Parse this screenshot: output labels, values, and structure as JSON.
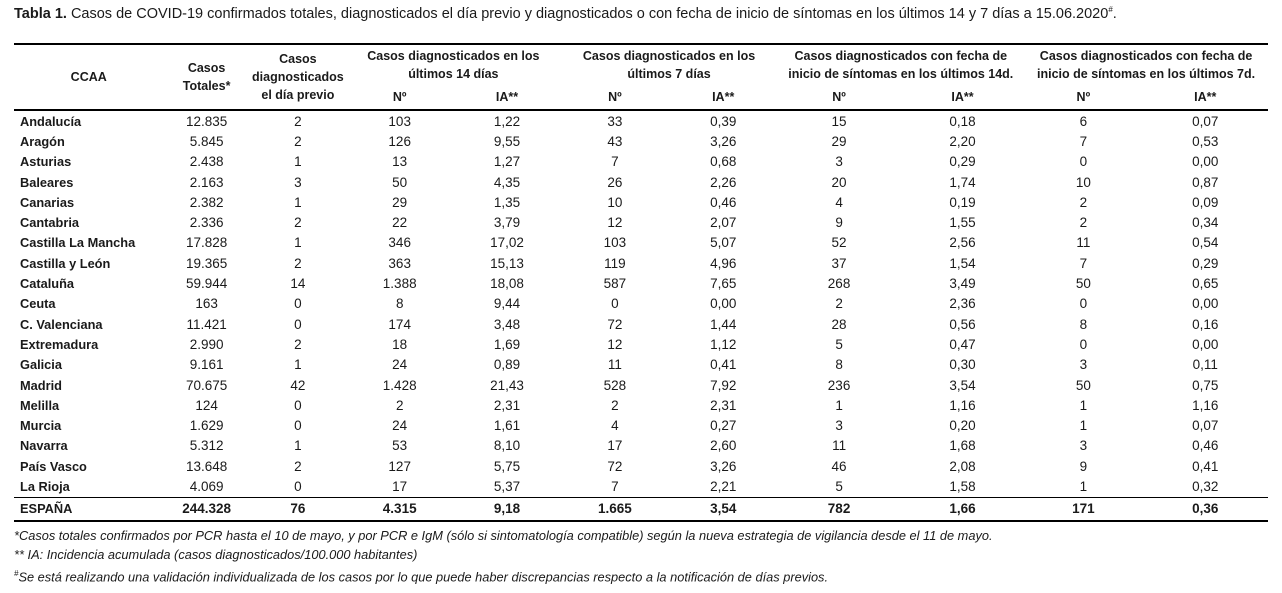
{
  "caption": {
    "label": "Tabla 1.",
    "text": "Casos de COVID-19 confirmados totales, diagnosticados el día previo y diagnosticados o con fecha de inicio de síntomas en los últimos 14 y 7 días a 15.06.2020",
    "mark": "#",
    "end": "."
  },
  "headers": {
    "ccaa": "CCAA",
    "totales": "Casos Totales*",
    "previo": "Casos diagnosticados el día previo",
    "g14": "Casos diagnosticados en los últimos 14 días",
    "g7": "Casos diagnosticados en los últimos 7 días",
    "gs14": "Casos diagnosticados con fecha de inicio de síntomas en los últimos 14d.",
    "gs7": "Casos diagnosticados con fecha de inicio de síntomas en los últimos 7d.",
    "n": "Nº",
    "ia": "IA**"
  },
  "rows": [
    [
      "Andalucía",
      "12.835",
      "2",
      "103",
      "1,22",
      "33",
      "0,39",
      "15",
      "0,18",
      "6",
      "0,07"
    ],
    [
      "Aragón",
      "5.845",
      "2",
      "126",
      "9,55",
      "43",
      "3,26",
      "29",
      "2,20",
      "7",
      "0,53"
    ],
    [
      "Asturias",
      "2.438",
      "1",
      "13",
      "1,27",
      "7",
      "0,68",
      "3",
      "0,29",
      "0",
      "0,00"
    ],
    [
      "Baleares",
      "2.163",
      "3",
      "50",
      "4,35",
      "26",
      "2,26",
      "20",
      "1,74",
      "10",
      "0,87"
    ],
    [
      "Canarias",
      "2.382",
      "1",
      "29",
      "1,35",
      "10",
      "0,46",
      "4",
      "0,19",
      "2",
      "0,09"
    ],
    [
      "Cantabria",
      "2.336",
      "2",
      "22",
      "3,79",
      "12",
      "2,07",
      "9",
      "1,55",
      "2",
      "0,34"
    ],
    [
      "Castilla La Mancha",
      "17.828",
      "1",
      "346",
      "17,02",
      "103",
      "5,07",
      "52",
      "2,56",
      "11",
      "0,54"
    ],
    [
      "Castilla y León",
      "19.365",
      "2",
      "363",
      "15,13",
      "119",
      "4,96",
      "37",
      "1,54",
      "7",
      "0,29"
    ],
    [
      "Cataluña",
      "59.944",
      "14",
      "1.388",
      "18,08",
      "587",
      "7,65",
      "268",
      "3,49",
      "50",
      "0,65"
    ],
    [
      "Ceuta",
      "163",
      "0",
      "8",
      "9,44",
      "0",
      "0,00",
      "2",
      "2,36",
      "0",
      "0,00"
    ],
    [
      "C. Valenciana",
      "11.421",
      "0",
      "174",
      "3,48",
      "72",
      "1,44",
      "28",
      "0,56",
      "8",
      "0,16"
    ],
    [
      "Extremadura",
      "2.990",
      "2",
      "18",
      "1,69",
      "12",
      "1,12",
      "5",
      "0,47",
      "0",
      "0,00"
    ],
    [
      "Galicia",
      "9.161",
      "1",
      "24",
      "0,89",
      "11",
      "0,41",
      "8",
      "0,30",
      "3",
      "0,11"
    ],
    [
      "Madrid",
      "70.675",
      "42",
      "1.428",
      "21,43",
      "528",
      "7,92",
      "236",
      "3,54",
      "50",
      "0,75"
    ],
    [
      "Melilla",
      "124",
      "0",
      "2",
      "2,31",
      "2",
      "2,31",
      "1",
      "1,16",
      "1",
      "1,16"
    ],
    [
      "Murcia",
      "1.629",
      "0",
      "24",
      "1,61",
      "4",
      "0,27",
      "3",
      "0,20",
      "1",
      "0,07"
    ],
    [
      "Navarra",
      "5.312",
      "1",
      "53",
      "8,10",
      "17",
      "2,60",
      "11",
      "1,68",
      "3",
      "0,46"
    ],
    [
      "País Vasco",
      "13.648",
      "2",
      "127",
      "5,75",
      "72",
      "3,26",
      "46",
      "2,08",
      "9",
      "0,41"
    ],
    [
      "La Rioja",
      "4.069",
      "0",
      "17",
      "5,37",
      "7",
      "2,21",
      "5",
      "1,58",
      "1",
      "0,32"
    ]
  ],
  "total": [
    "ESPAÑA",
    "244.328",
    "76",
    "4.315",
    "9,18",
    "1.665",
    "3,54",
    "782",
    "1,66",
    "171",
    "0,36"
  ],
  "notes": {
    "n1": "*Casos totales confirmados por PCR hasta el 10 de mayo, y por PCR e IgM (sólo si sintomatología compatible) según la nueva estrategia de vigilancia desde el 11 de mayo.",
    "n2": "** IA: Incidencia acumulada (casos diagnosticados/100.000 habitantes)",
    "n3_mark": "#",
    "n3": "Se está realizando una validación individualizada de los casos por lo que puede haber discrepancias respecto a la notificación de días previos."
  }
}
